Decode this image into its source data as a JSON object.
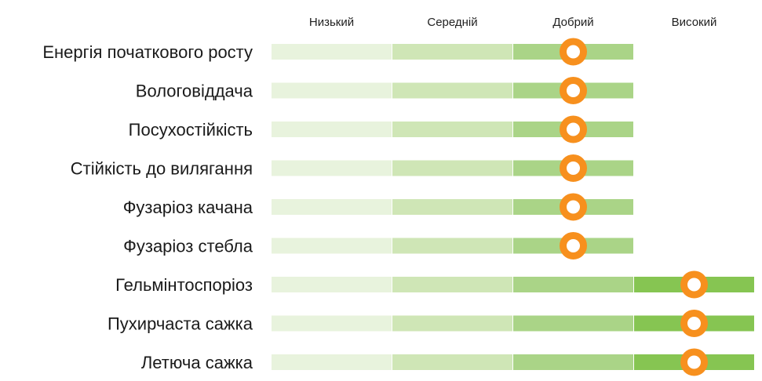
{
  "chart_data": {
    "type": "rating-scale",
    "title": "",
    "levels": [
      "Низький",
      "Середній",
      "Добрий",
      "Високий"
    ],
    "traits": [
      {
        "name": "Енергія початкового росту",
        "rating": 3
      },
      {
        "name": "Вологовіддача",
        "rating": 3
      },
      {
        "name": "Посухостійкість",
        "rating": 3
      },
      {
        "name": "Стійкість до вилягання",
        "rating": 3
      },
      {
        "name": "Фузаріоз качана",
        "rating": 3
      },
      {
        "name": "Фузаріоз стебла",
        "rating": 3
      },
      {
        "name": "Гельмінтоспоріоз",
        "rating": 4
      },
      {
        "name": "Пухирчаста сажка",
        "rating": 4
      },
      {
        "name": "Летюча сажка",
        "rating": 4
      }
    ],
    "segment_colors": [
      "#e8f3dd",
      "#cfe6b6",
      "#aad487",
      "#86c552"
    ],
    "marker_color": "#f7901e",
    "marker_fill": "#ffffff"
  }
}
